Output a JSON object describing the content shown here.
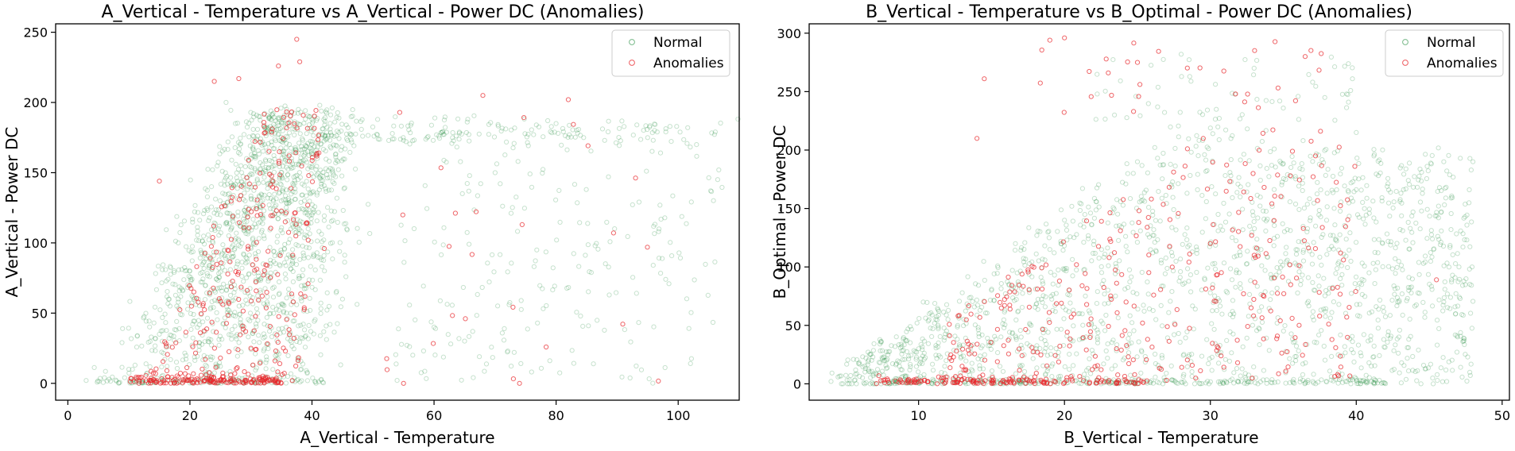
{
  "chart_data": [
    {
      "type": "scatter",
      "title": "A_Vertical - Temperature vs A_Vertical - Power DC (Anomalies)",
      "xlabel": "A_Vertical - Temperature",
      "ylabel": "A_Vertical - Power DC",
      "xlim": [
        -2,
        110
      ],
      "ylim": [
        -12,
        256
      ],
      "xticks": [
        0,
        20,
        40,
        60,
        80,
        100
      ],
      "yticks": [
        0,
        50,
        100,
        150,
        200,
        250
      ],
      "grid": false,
      "legend_position": "top-right",
      "series": [
        {
          "name": "Normal",
          "color": "#1e8a3a",
          "alpha": 0.15,
          "marker": "circle-hollow",
          "approx_count": 1800,
          "clusters": [
            {
              "x_range": [
                8,
                48
              ],
              "y_range": [
                0,
                195
              ],
              "shape": "dense band rising with temperature, left edge 8→30, right edge 38→48",
              "weight": 0.78
            },
            {
              "x_range": [
                52,
                105
              ],
              "y_range": [
                0,
                195
              ],
              "shape": "sparse vertical streaks",
              "weight": 0.14
            },
            {
              "x_range": [
                40,
                100
              ],
              "y_range": [
                170,
                195
              ],
              "shape": "plateau near 185",
              "weight": 0.08
            }
          ],
          "points": [
            [
              3,
              2
            ],
            [
              6,
              4
            ],
            [
              10,
              10
            ],
            [
              15,
              35
            ],
            [
              20,
              80
            ],
            [
              25,
              120
            ],
            [
              30,
              160
            ],
            [
              35,
              185
            ],
            [
              40,
              120
            ],
            [
              45,
              60
            ],
            [
              60,
              40
            ],
            [
              70,
              150
            ],
            [
              80,
              185
            ],
            [
              95,
              175
            ],
            [
              103,
              170
            ]
          ]
        },
        {
          "name": "Anomalies",
          "color": "#e8262b",
          "alpha": 0.55,
          "marker": "circle-hollow",
          "approx_count": 420,
          "clusters": [
            {
              "x_range": [
                10,
                35
              ],
              "y_range": [
                0,
                6
              ],
              "shape": "dense strip at zero power",
              "weight": 0.35
            },
            {
              "x_range": [
                14,
                45
              ],
              "y_range": [
                5,
                200
              ],
              "shape": "mixed within main band",
              "weight": 0.58
            },
            {
              "x_range": [
                50,
                100
              ],
              "y_range": [
                0,
                205
              ],
              "shape": "scattered",
              "weight": 0.07
            }
          ],
          "points": [
            [
              37.5,
              245
            ],
            [
              38,
              229
            ],
            [
              34.5,
              226
            ],
            [
              28,
              217
            ],
            [
              24,
              215
            ],
            [
              82,
              202
            ],
            [
              68,
              205
            ],
            [
              15,
              144
            ],
            [
              42,
              96
            ],
            [
              55,
              0
            ],
            [
              74,
              0
            ],
            [
              30,
              25
            ],
            [
              25,
              18
            ],
            [
              20,
              2
            ]
          ]
        }
      ]
    },
    {
      "type": "scatter",
      "title": "B_Vertical - Temperature vs B_Optimal - Power DC (Anomalies)",
      "xlabel": "B_Vertical - Temperature",
      "ylabel": "B_Optimal - Power DC",
      "xlim": [
        2.5,
        50.5
      ],
      "ylim": [
        -14,
        308
      ],
      "xticks": [
        10,
        20,
        30,
        40,
        50
      ],
      "yticks": [
        0,
        50,
        100,
        150,
        200,
        250,
        300
      ],
      "grid": false,
      "legend_position": "top-right",
      "series": [
        {
          "name": "Normal",
          "color": "#1e8a3a",
          "alpha": 0.15,
          "marker": "circle-hollow",
          "approx_count": 1900,
          "clusters": [
            {
              "x_range": [
                4,
                48
              ],
              "y_range": [
                0,
                225
              ],
              "shape": "wedge: upper limit rises from 0 at x=4 to ~220 at x=28, plateau to x=46",
              "weight": 0.85
            },
            {
              "x_range": [
                8,
                42
              ],
              "y_range": [
                0,
                10
              ],
              "shape": "zero-power strip",
              "weight": 0.15
            }
          ],
          "points": [
            [
              4,
              2
            ],
            [
              10,
              30
            ],
            [
              15,
              80
            ],
            [
              20,
              140
            ],
            [
              25,
              190
            ],
            [
              28,
              282
            ],
            [
              33,
              270
            ],
            [
              40,
              215
            ],
            [
              46,
              190
            ],
            [
              48,
              190
            ],
            [
              46,
              70
            ]
          ]
        },
        {
          "name": "Anomalies",
          "color": "#e8262b",
          "alpha": 0.55,
          "marker": "circle-hollow",
          "approx_count": 480,
          "clusters": [
            {
              "x_range": [
                7,
                26
              ],
              "y_range": [
                0,
                6
              ],
              "shape": "dense zero-power strip",
              "weight": 0.33
            },
            {
              "x_range": [
                12,
                40
              ],
              "y_range": [
                5,
                225
              ],
              "shape": "mixed within wedge",
              "weight": 0.62
            },
            {
              "x_range": [
                18,
                38
              ],
              "y_range": [
                230,
                300
              ],
              "shape": "high outliers",
              "weight": 0.05
            }
          ],
          "points": [
            [
              19,
              294
            ],
            [
              20,
              296
            ],
            [
              14.5,
              261
            ],
            [
              36.5,
              280
            ],
            [
              23,
              266
            ],
            [
              25,
              275
            ],
            [
              14,
              210
            ],
            [
              45.5,
              89
            ],
            [
              30,
              120
            ],
            [
              15,
              3
            ],
            [
              20,
              1
            ]
          ]
        }
      ]
    }
  ]
}
